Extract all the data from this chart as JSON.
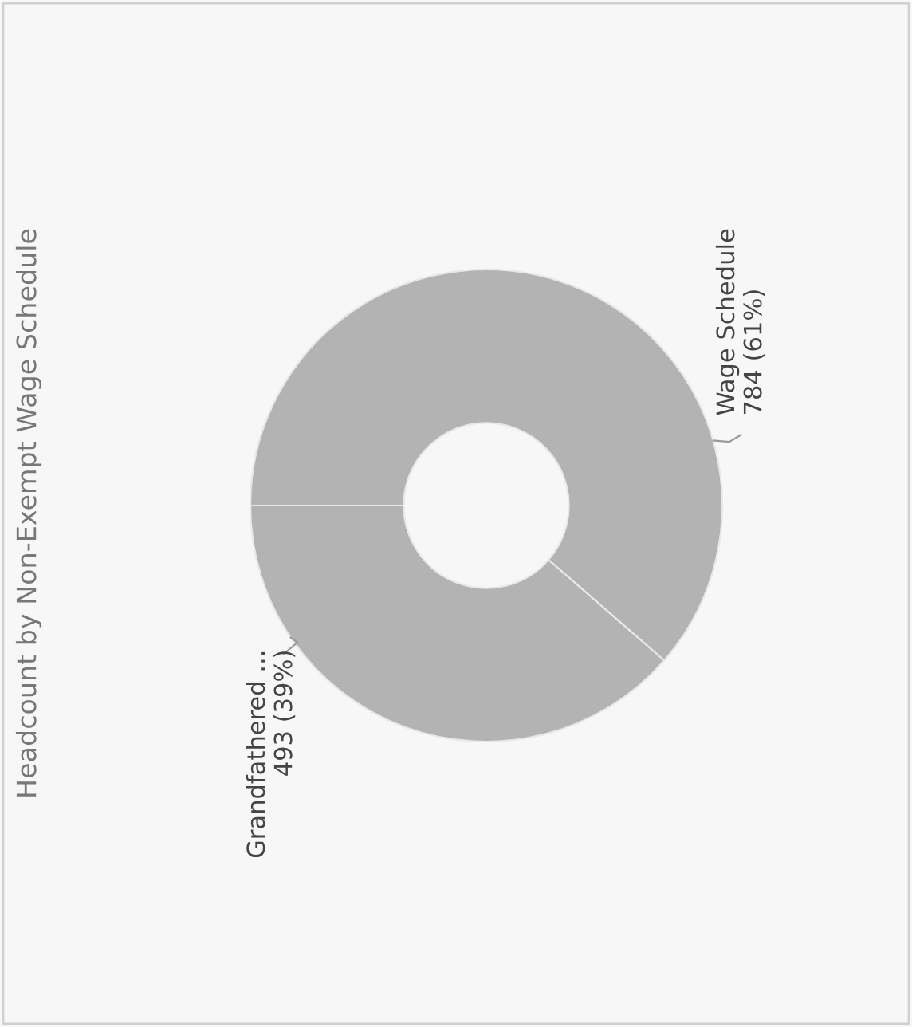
{
  "chart_data": {
    "type": "donut",
    "title": "Headcount by Non-Exempt Wage Schedule",
    "categories": [
      "Grandfathered ...",
      "Wage Schedule"
    ],
    "values": [
      493,
      784
    ],
    "colors": [
      "#b3b3b3",
      "#b3b3b3"
    ],
    "value_labels": [
      "493 (39%)",
      "784 (61%)"
    ]
  }
}
